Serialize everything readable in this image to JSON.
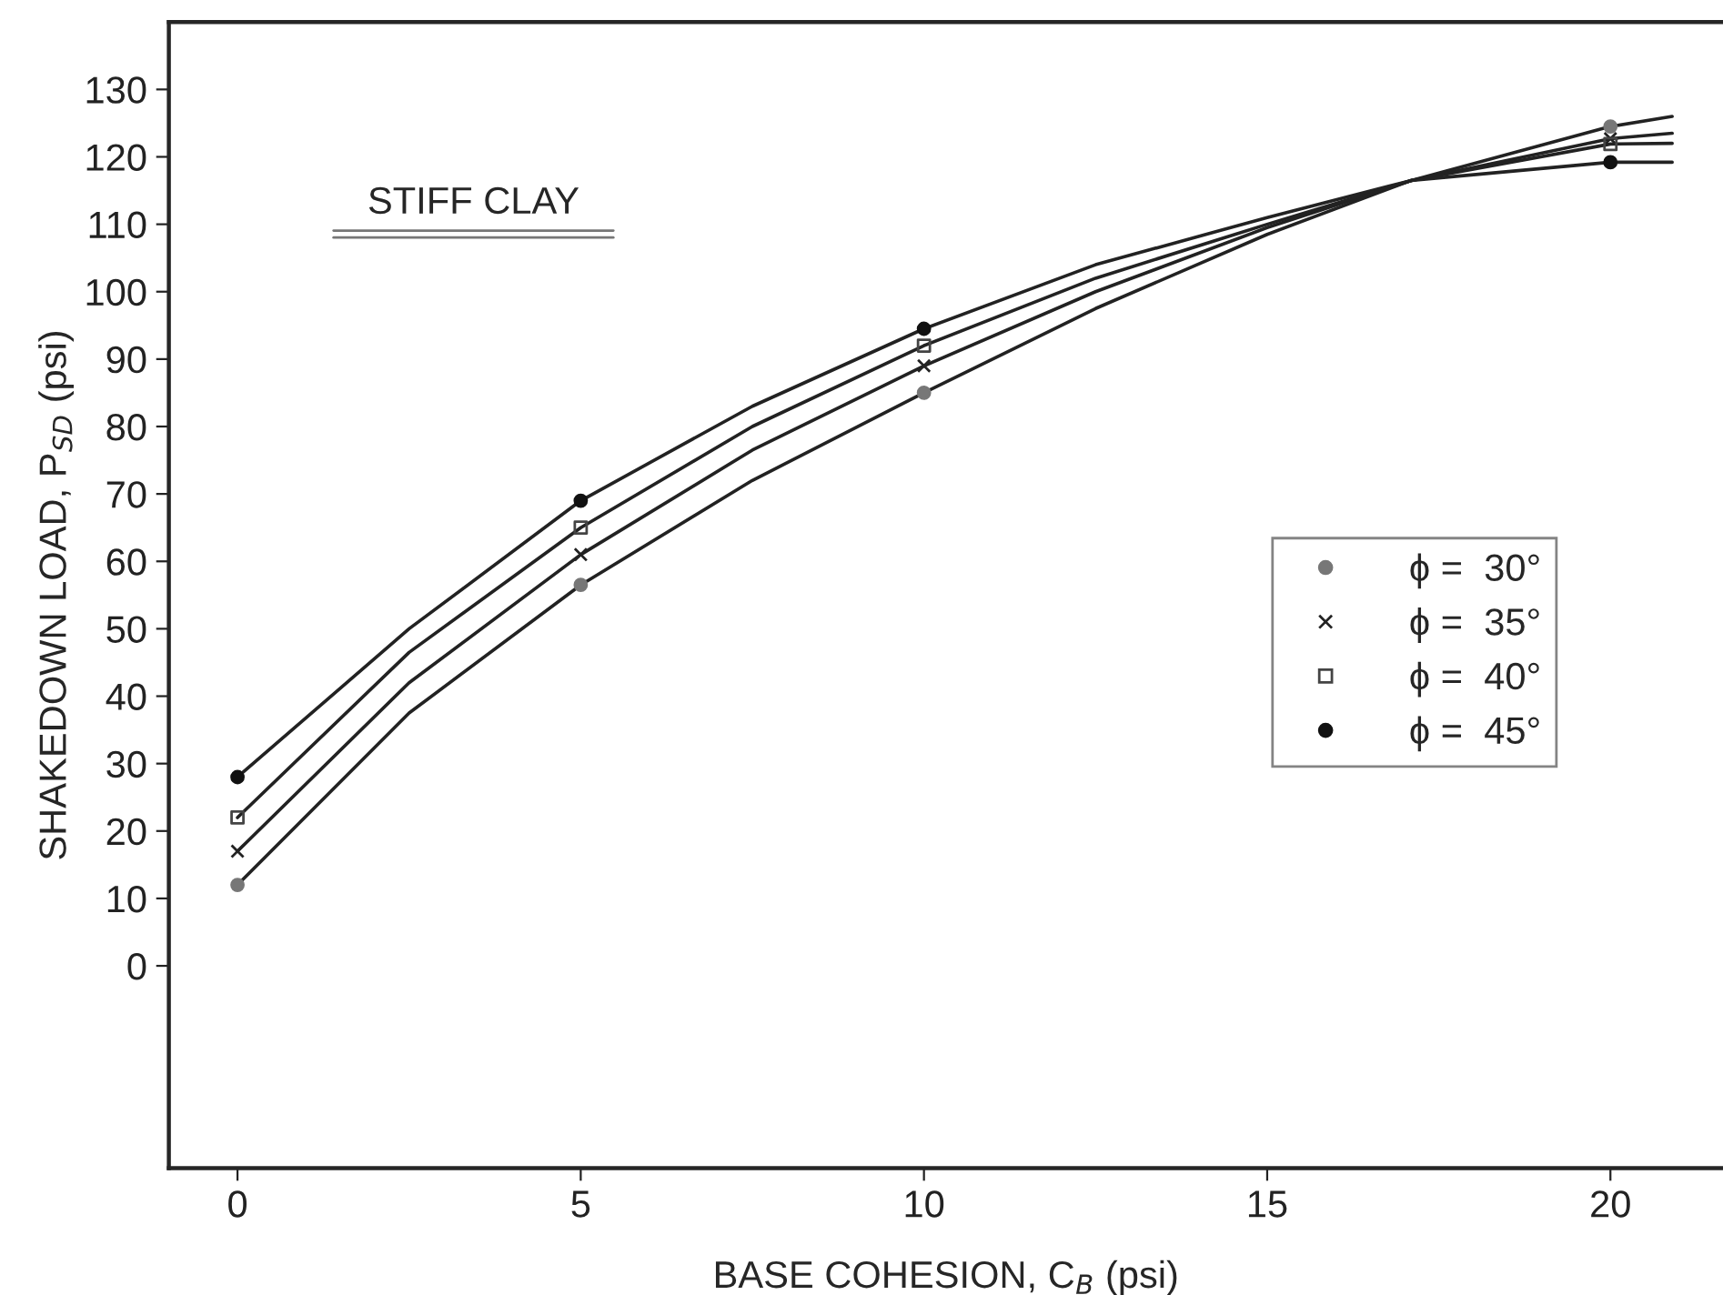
{
  "chart_data": {
    "type": "line",
    "xlabel": "BASE COHESION, C$_{B}$ (psi)",
    "ylabel": "SHAKEDOWN LOAD, P$_{SD}$ (psi)",
    "xlim": [
      -1,
      21.64
    ],
    "ylim": [
      -30,
      140
    ],
    "xticks": [
      0,
      5,
      10,
      15,
      20
    ],
    "yticks": [
      0,
      10,
      20,
      30,
      40,
      50,
      60,
      70,
      80,
      90,
      100,
      110,
      120,
      130
    ],
    "grid": false,
    "legend": "right",
    "line_style": "solid",
    "annotations": [
      "STIFF CLAY"
    ],
    "series": [
      {
        "color": "#222222",
        "marker": "none",
        "x": [
          0,
          2.5,
          5,
          7.5,
          10,
          12.5,
          15,
          17.1,
          20,
          20.9
        ],
        "values": [
          12,
          37.5,
          56.5,
          72,
          85,
          97.5,
          108.5,
          116.5,
          124.5,
          126
        ]
      },
      {
        "color": "#222222",
        "marker": "none",
        "x": [
          0,
          2.5,
          5,
          7.5,
          10,
          12.5,
          15,
          17.1,
          20,
          20.9
        ],
        "values": [
          17,
          42,
          61,
          76.5,
          89,
          100,
          109.5,
          116.5,
          122.7,
          123.5
        ]
      },
      {
        "color": "#222222",
        "marker": "none",
        "x": [
          0,
          2.5,
          5,
          7.5,
          10,
          12.5,
          15,
          17.1,
          20,
          20.9
        ],
        "values": [
          22,
          46.5,
          65,
          80,
          92,
          102,
          110,
          116.5,
          121.9,
          122
        ]
      },
      {
        "color": "#222222",
        "marker": "none",
        "x": [
          0,
          2.5,
          5,
          7.5,
          10,
          12.5,
          15,
          17.1,
          20,
          20.9
        ],
        "values": [
          28,
          50,
          69,
          83,
          94.5,
          104,
          111,
          116.5,
          119.2,
          119.2
        ]
      },
      {
        "type": "scatter",
        "name": "ϕ =  30°",
        "color": "#777777",
        "marker": "circle",
        "x": [
          0,
          5,
          10,
          20
        ],
        "values": [
          12,
          56.5,
          85,
          124.5
        ]
      },
      {
        "type": "scatter",
        "name": "ϕ =  35°",
        "color": "#222222",
        "marker": "cross",
        "x": [
          0,
          5,
          10,
          20
        ],
        "values": [
          17,
          61,
          89,
          122.7
        ]
      },
      {
        "type": "scatter",
        "name": "ϕ =  40°",
        "color": "#444444",
        "marker": "square",
        "x": [
          0,
          5,
          10,
          20
        ],
        "values": [
          22,
          65,
          92,
          121.9
        ]
      },
      {
        "type": "scatter",
        "name": "ϕ =  45°",
        "color": "#111111",
        "marker": "circle",
        "x": [
          0,
          5,
          10,
          20
        ],
        "values": [
          28,
          69,
          94.5,
          119.2
        ]
      }
    ]
  }
}
